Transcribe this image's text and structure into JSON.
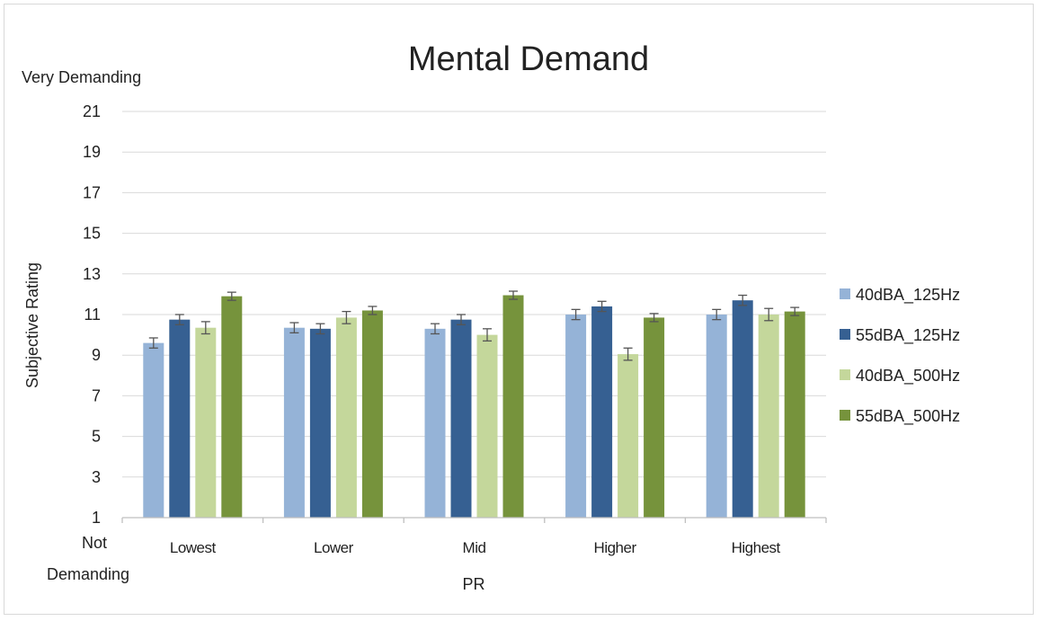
{
  "chart_data": {
    "type": "bar",
    "title": "Mental Demand",
    "xlabel": "PR",
    "ylabel": "Subjective Rating",
    "y_top_label": "Very Demanding",
    "y_bottom_label_line1": "Not",
    "y_bottom_label_line2": "Demanding",
    "ylim": [
      1,
      21
    ],
    "yticks": [
      1,
      3,
      5,
      7,
      9,
      11,
      13,
      15,
      17,
      19,
      21
    ],
    "grid": true,
    "legend_position": "right",
    "categories": [
      "Lowest",
      "Lower",
      "Mid",
      "Higher",
      "Highest"
    ],
    "series": [
      {
        "name": "40dBA_125Hz",
        "color": "#95b3d7",
        "values": [
          9.6,
          10.35,
          10.3,
          11.0,
          11.0
        ],
        "errors": [
          0.25,
          0.25,
          0.25,
          0.25,
          0.25
        ]
      },
      {
        "name": "55dBA_125Hz",
        "color": "#366092",
        "values": [
          10.75,
          10.3,
          10.75,
          11.4,
          11.7
        ],
        "errors": [
          0.25,
          0.25,
          0.25,
          0.25,
          0.25
        ]
      },
      {
        "name": "40dBA_500Hz",
        "color": "#c4d79b",
        "values": [
          10.35,
          10.85,
          10.0,
          9.05,
          11.0
        ],
        "errors": [
          0.3,
          0.3,
          0.3,
          0.3,
          0.3
        ]
      },
      {
        "name": "55dBA_500Hz",
        "color": "#76933c",
        "values": [
          11.9,
          11.2,
          11.95,
          10.85,
          11.15
        ],
        "errors": [
          0.2,
          0.2,
          0.2,
          0.2,
          0.2
        ]
      }
    ]
  }
}
